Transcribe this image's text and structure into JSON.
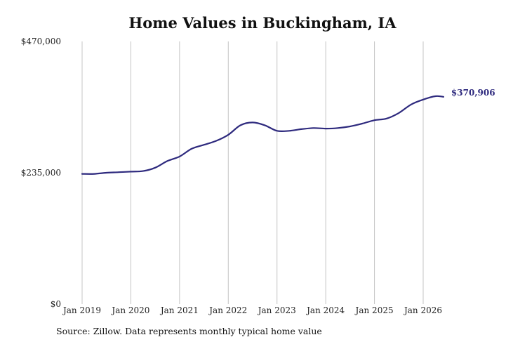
{
  "title": "Home Values in Buckingham, IA",
  "source": "Source: Zillow. Data represents monthly typical home value",
  "colors": {
    "line": "#2e2a7e",
    "grid": "#c4c4c4",
    "text": "#222222"
  },
  "chart_data": {
    "type": "line",
    "title": "Home Values in Buckingham, IA",
    "xlabel": "",
    "ylabel": "",
    "ylim": [
      0,
      470000
    ],
    "y_ticks": [
      0,
      235000,
      470000
    ],
    "y_tick_labels": [
      "$0",
      "$235,000",
      "$470,000"
    ],
    "x_ticks": [
      "2019-01",
      "2020-01",
      "2021-01",
      "2022-01",
      "2023-01",
      "2024-01",
      "2025-01",
      "2026-01"
    ],
    "x_tick_labels": [
      "Jan 2019",
      "Jan 2020",
      "Jan 2021",
      "Jan 2022",
      "Jan 2023",
      "Jan 2024",
      "Jan 2025",
      "Jan 2026"
    ],
    "grid": "vertical",
    "end_label": "$370,906",
    "series": [
      {
        "x": [
          "2019-01",
          "2019-04",
          "2019-07",
          "2019-10",
          "2020-01",
          "2020-04",
          "2020-07",
          "2020-10",
          "2021-01",
          "2021-04",
          "2021-07",
          "2021-10",
          "2022-01",
          "2022-04",
          "2022-07",
          "2022-10",
          "2023-01",
          "2023-04",
          "2023-07",
          "2023-10",
          "2024-01",
          "2024-04",
          "2024-07",
          "2024-10",
          "2025-01",
          "2025-04",
          "2025-07",
          "2025-10",
          "2026-01",
          "2026-04",
          "2026-06"
        ],
        "values": [
          233000,
          233000,
          235000,
          236000,
          237000,
          238000,
          244000,
          256000,
          264000,
          278000,
          285000,
          292000,
          303000,
          320000,
          325000,
          320000,
          310000,
          310000,
          313000,
          315000,
          314000,
          315000,
          318000,
          323000,
          329000,
          332000,
          342000,
          357000,
          366000,
          372000,
          370906
        ]
      }
    ]
  }
}
